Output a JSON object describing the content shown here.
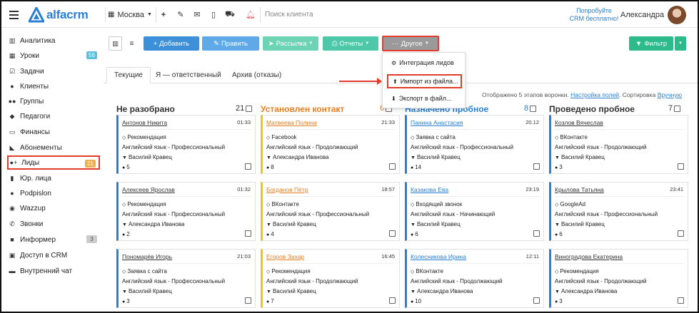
{
  "topbar": {
    "logo_text": "alfacrm",
    "city": "Москва",
    "search_placeholder": "Поиск клиента",
    "promo_line1": "Попробуйте",
    "promo_line2": "CRM бесплатно!",
    "user_name": "Александра"
  },
  "sidebar": {
    "items": [
      {
        "label": "Аналитика",
        "icon": "chart-icon"
      },
      {
        "label": "Уроки",
        "icon": "calendar-icon",
        "badge": "56",
        "badge_color": "#5bc0de"
      },
      {
        "label": "Задачи",
        "icon": "tasks-icon"
      },
      {
        "label": "Клиенты",
        "icon": "user-icon"
      },
      {
        "label": "Группы",
        "icon": "users-icon"
      },
      {
        "label": "Педагоги",
        "icon": "graduation-cap-icon"
      },
      {
        "label": "Финансы",
        "icon": "money-icon"
      },
      {
        "label": "Абонементы",
        "icon": "tag-icon"
      },
      {
        "label": "Лиды",
        "icon": "user-plus-icon",
        "badge": "21",
        "badge_color": "#f0ad4e",
        "active": true
      },
      {
        "label": "Юр. лица",
        "icon": "building-icon"
      },
      {
        "label": "Podpislon",
        "icon": "podpislon-icon"
      },
      {
        "label": "Wazzup",
        "icon": "whatsapp-icon"
      },
      {
        "label": "Звонки",
        "icon": "phone-icon"
      },
      {
        "label": "Информер",
        "icon": "bell-icon",
        "badge": "3",
        "badge_color": "#cccccc"
      },
      {
        "label": "Доступ в CRM",
        "icon": "lock-icon"
      },
      {
        "label": "Внутренний чат",
        "icon": "chat-icon"
      }
    ]
  },
  "toolbar": {
    "add_label": "+ Добавить",
    "edit_label": "Править",
    "mailing_label": "Рассылка",
    "reports_label": "Отчеты",
    "other_label": "Другое",
    "filter_label": "Фильтр"
  },
  "dropdown": {
    "items": [
      "Интеграция лидов",
      "Импорт из файла...",
      "Экспорт в файл..."
    ]
  },
  "tabs": [
    "Текущие",
    "Я — ответственный",
    "Архив (отказы)"
  ],
  "stats": {
    "text": "Отображено 5 этапов воронки.",
    "link1": "Настройка полей",
    "sort": ". Сортировка",
    "link2": "Вручную"
  },
  "columns": [
    {
      "title": "Не разобрано",
      "count": "21",
      "color": "#333333",
      "accent": "#2a7fd4",
      "cards": [
        {
          "name": "Антонов Никита",
          "time": "01:33",
          "source": "Рекомендация",
          "course": "Английский язык - Профессиональный",
          "manager": "Василий Кравец",
          "comments": "5"
        },
        {
          "name": "Алексеев Ярослав",
          "time": "01:32",
          "source": "Рекомендация",
          "course": "Английский язык - Профессиональный",
          "manager": "Александра Иванова",
          "comments": "2"
        },
        {
          "name": "Пономарёв Игорь",
          "time": "21:03",
          "source": "Заявка с сайта",
          "course": "Английский язык - Профессиональный",
          "manager": "Василий Кравец",
          "comments": "3"
        }
      ]
    },
    {
      "title": "Установлен контакт",
      "count": "6",
      "color": "#e67e22",
      "accent": "#f1c40f",
      "cards": [
        {
          "name": "Матвеева Полина",
          "time": "21:33",
          "source": "Facebook",
          "course": "Английский язык - Продолжающий",
          "manager": "Александра Иванова",
          "comments": "8"
        },
        {
          "name": "Богданов Пётр",
          "time": "18:57",
          "source": "ВКонтакте",
          "course": "Английский язык - Профессиональный",
          "manager": "Василий Кравец",
          "comments": "4"
        },
        {
          "name": "Егоров Захар",
          "time": "16:45",
          "source": "Рекомендация",
          "course": "Английский язык - Продолжающий",
          "manager": "Василий Кравец",
          "comments": "7"
        }
      ]
    },
    {
      "title": "Назначено пробное",
      "count": "8",
      "color": "#2a7fd4",
      "accent": "#2a7fd4",
      "cards": [
        {
          "name": "Панина Анастасия",
          "time": "20.12",
          "source": "Заявка с сайта",
          "course": "Английский язык - Профессиональный",
          "manager": "Василий Кравец",
          "comments": "14"
        },
        {
          "name": "Казакова Ева",
          "time": "23:19",
          "source": "Входящий звонок",
          "course": "Английский язык - Начинающий",
          "manager": "Василий Кравец",
          "comments": "6"
        },
        {
          "name": "Колесникова Ирина",
          "time": "12:11",
          "source": "ВКонтакте",
          "course": "Английский язык - Продолжающий",
          "manager": "Александра Иванова",
          "comments": "10"
        }
      ]
    },
    {
      "title": "Проведено пробное",
      "count": "7",
      "color": "#333333",
      "accent": "#2a7fd4",
      "cards": [
        {
          "name": "Козлов Вячеслав",
          "time": "",
          "source": "ВКонтакте",
          "course": "Английский язык - Продолжающий",
          "manager": "Василий Кравец",
          "comments": "3"
        },
        {
          "name": "Крылова Татьяна",
          "time": "23:41",
          "source": "GoogleAd",
          "course": "Английский язык - Профессиональный",
          "manager": "Василий Кравец",
          "comments": "6"
        },
        {
          "name": "Виноградова Екатерина",
          "time": "",
          "source": "Рекомендация",
          "course": "Английский язык - Продолжающий",
          "manager": "Александра Иванова",
          "comments": "3"
        }
      ]
    }
  ],
  "colors": {
    "brand": "#2a7fd4",
    "add_button": "#3d8fd8",
    "edit_button": "#5fa9e8",
    "mailing_button": "#6cd3b3",
    "reports_button": "#4dc8a9",
    "other_button": "#9a9a9a",
    "filter_button": "#2dbb8c",
    "highlight": "#e53b2c"
  }
}
